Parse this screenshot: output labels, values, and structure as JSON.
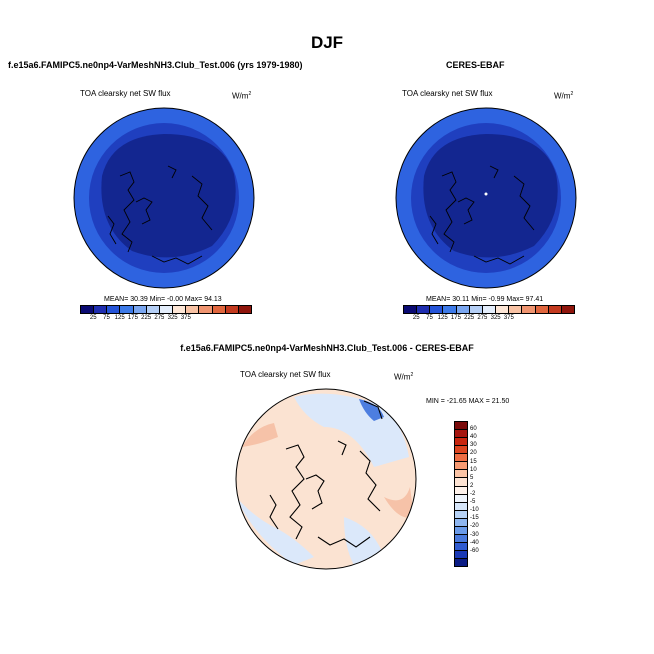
{
  "season": "DJF",
  "model_title": "f.e15a6.FAMIPC5.ne0np4-VarMeshNH3.Club_Test.006 (yrs 1979-1980)",
  "obs_title": "CERES-EBAF",
  "diff_title": "f.e15a6.FAMIPC5.ne0np4-VarMeshNH3.Club_Test.006 - CERES-EBAF",
  "variable": "TOA clearsky net SW flux",
  "units_base": "W/m",
  "units_exp": "2",
  "model_stats": "MEAN=  30.39  Min=  -0.00  Max=  94.13",
  "obs_stats": "MEAN=  30.11  Min=  -0.99  Max=  97.41",
  "diff_stats": "MIN = -21.65 MAX =  21.50",
  "abs_colorbar": {
    "colors": [
      "#0a0a72",
      "#1f2eb0",
      "#2554d8",
      "#3d7ae8",
      "#7aa6f0",
      "#b5cff6",
      "#e4eefc",
      "#fde6d6",
      "#f8c2a4",
      "#ef9470",
      "#e0663e",
      "#c33a1f",
      "#8f150c"
    ],
    "ticks": [
      "25",
      "75",
      "125",
      "175",
      "225",
      "275",
      "325",
      "375"
    ]
  },
  "diff_colorbar": {
    "colors": [
      "#7a0a0a",
      "#a5150f",
      "#c8260f",
      "#dc4520",
      "#ee6e44",
      "#f79a72",
      "#fbc4a6",
      "#fde3d3",
      "#fdf1ea",
      "#eef4fc",
      "#d6e6fa",
      "#b6d2f6",
      "#8eb6f0",
      "#6a9ae8",
      "#4979dc",
      "#2f5bd0",
      "#1a39b5",
      "#0b1c85"
    ],
    "ticks": [
      "60",
      "40",
      "30",
      "20",
      "15",
      "10",
      "5",
      "2",
      "-2",
      "-5",
      "-10",
      "-15",
      "-20",
      "-30",
      "-40",
      "-60"
    ]
  },
  "map_colors": {
    "model_outer": "#2e63e0",
    "model_ring": "#1f3fbf",
    "model_inner": "#132690",
    "diff_base": "#fbe3d2",
    "diff_blue": "#dbe8fa",
    "diff_red": "#f6c2a8",
    "diff_darkblue": "#4d7ee0"
  }
}
